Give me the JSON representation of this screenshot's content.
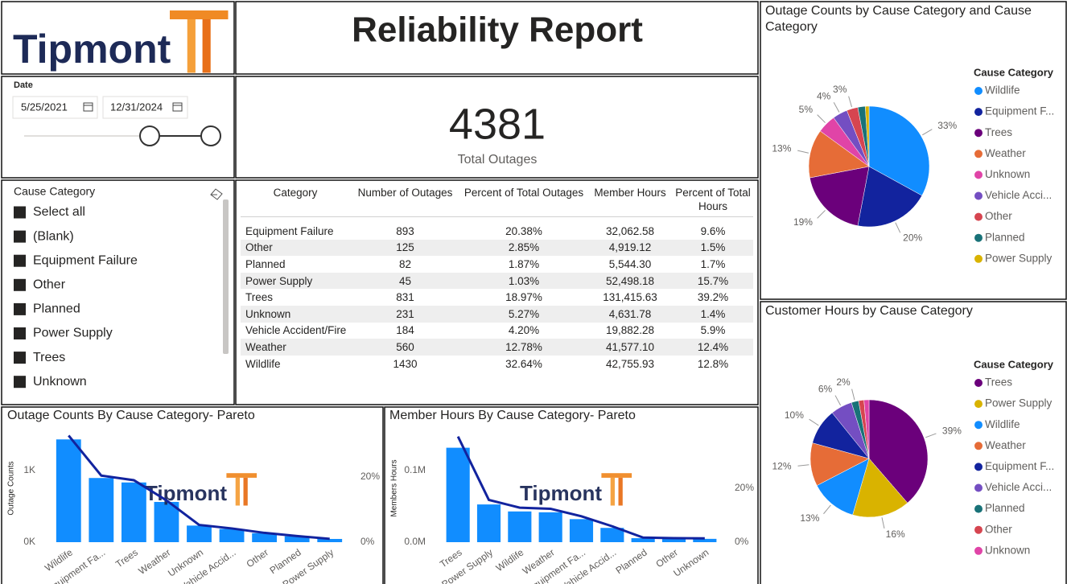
{
  "header": {
    "logo": "Tipmont",
    "title": "Reliability Report"
  },
  "date_filter": {
    "label": "Date",
    "start": "5/25/2021",
    "end": "12/31/2024"
  },
  "kpi": {
    "value": 4381,
    "label": "Total Outages"
  },
  "cause_filter": {
    "title": "Cause Category",
    "items": [
      "Select all",
      "(Blank)",
      "Equipment Failure",
      "Other",
      "Planned",
      "Power Supply",
      "Trees",
      "Unknown"
    ]
  },
  "table": {
    "columns": [
      "Category",
      "Number of Outages",
      "Percent of Total Outages",
      "Member Hours",
      "Percent of Total Hours"
    ],
    "rows": [
      [
        "Equipment Failure",
        "893",
        "20.38%",
        "32,062.58",
        "9.6%"
      ],
      [
        "Other",
        "125",
        "2.85%",
        "4,919.12",
        "1.5%"
      ],
      [
        "Planned",
        "82",
        "1.87%",
        "5,544.30",
        "1.7%"
      ],
      [
        "Power Supply",
        "45",
        "1.03%",
        "52,498.18",
        "15.7%"
      ],
      [
        "Trees",
        "831",
        "18.97%",
        "131,415.63",
        "39.2%"
      ],
      [
        "Unknown",
        "231",
        "5.27%",
        "4,631.78",
        "1.4%"
      ],
      [
        "Vehicle Accident/Fire",
        "184",
        "4.20%",
        "19,882.28",
        "5.9%"
      ],
      [
        "Weather",
        "560",
        "12.78%",
        "41,577.10",
        "12.4%"
      ],
      [
        "Wildlife",
        "1430",
        "32.64%",
        "42,755.93",
        "12.8%"
      ]
    ]
  },
  "chart_data": [
    {
      "type": "pie",
      "title": "Outage Counts by Cause Category and Cause Category",
      "legend_title": "Cause Category",
      "categories": [
        "Wildlife",
        "Equipment F...",
        "Trees",
        "Weather",
        "Unknown",
        "Vehicle Acci...",
        "Other",
        "Planned",
        "Power Supply"
      ],
      "values": [
        33,
        20,
        19,
        13,
        5,
        4,
        3,
        2,
        1
      ],
      "value_labels": [
        "33%",
        "20%",
        "19%",
        "13%",
        "5%",
        "4%",
        "3%",
        null,
        null
      ],
      "colors": [
        "#118DFF",
        "#12239E",
        "#6B007B",
        "#E66C37",
        "#E044A7",
        "#744EC2",
        "#D64550",
        "#197278",
        "#D9B300"
      ]
    },
    {
      "type": "pie",
      "title": "Customer Hours by Cause Category",
      "legend_title": "Cause Category",
      "categories": [
        "Trees",
        "Power Supply",
        "Wildlife",
        "Weather",
        "Equipment F...",
        "Vehicle Acci...",
        "Planned",
        "Other",
        "Unknown"
      ],
      "values": [
        39,
        16,
        13,
        12,
        10,
        6,
        2,
        1.5,
        1.4
      ],
      "value_labels": [
        "39%",
        "16%",
        "13%",
        "12%",
        "10%",
        "6%",
        "2%",
        null,
        null
      ],
      "colors": [
        "#6B007B",
        "#D9B300",
        "#118DFF",
        "#E66C37",
        "#12239E",
        "#744EC2",
        "#197278",
        "#D64550",
        "#E044A7"
      ]
    },
    {
      "type": "combo",
      "title": "Outage Counts By Cause Category- Pareto",
      "y_label": "Outage Counts",
      "categories": [
        "Wildlife",
        "Equipment Fa...",
        "Trees",
        "Weather",
        "Unknown",
        "Vehicle Accid...",
        "Other",
        "Planned",
        "Power Supply"
      ],
      "series": [
        {
          "type": "bar",
          "color": "#118DFF",
          "values": [
            1430,
            893,
            831,
            560,
            231,
            184,
            125,
            82,
            45
          ]
        },
        {
          "type": "line",
          "axis": "y2",
          "color": "#12239E",
          "values": [
            32.64,
            20.38,
            18.97,
            12.78,
            5.27,
            4.2,
            2.85,
            1.87,
            1.03
          ]
        }
      ],
      "ylim": [
        0,
        1500
      ],
      "yticks": [
        {
          "value": 0,
          "label": "0K"
        },
        {
          "value": 1000,
          "label": "1K"
        }
      ],
      "y2lim": [
        0,
        33
      ],
      "y2ticks": [
        {
          "value": 0,
          "label": "0%"
        },
        {
          "value": 20,
          "label": "20%"
        }
      ]
    },
    {
      "type": "combo",
      "title": "Member Hours By Cause Category- Pareto",
      "y_label": "Members Hours",
      "categories": [
        "Trees",
        "Power Supply",
        "Wildlife",
        "Weather",
        "Equipment Fa...",
        "Vehicle Accid...",
        "Planned",
        "Other",
        "Unknown"
      ],
      "series": [
        {
          "type": "bar",
          "color": "#118DFF",
          "values": [
            131415.63,
            52498.18,
            42755.93,
            41577.1,
            32062.58,
            19882.28,
            5544.3,
            4919.12,
            4631.78
          ]
        },
        {
          "type": "line",
          "axis": "y2",
          "color": "#12239E",
          "values": [
            39.2,
            15.7,
            12.8,
            12.4,
            9.6,
            5.9,
            1.7,
            1.5,
            1.4
          ]
        }
      ],
      "ylim": [
        0,
        150000
      ],
      "yticks": [
        {
          "value": 0,
          "label": "0.0M"
        },
        {
          "value": 100000,
          "label": "0.1M"
        }
      ],
      "y2lim": [
        0,
        40
      ],
      "y2ticks": [
        {
          "value": 0,
          "label": "0%"
        },
        {
          "value": 20,
          "label": "20%"
        }
      ]
    }
  ]
}
